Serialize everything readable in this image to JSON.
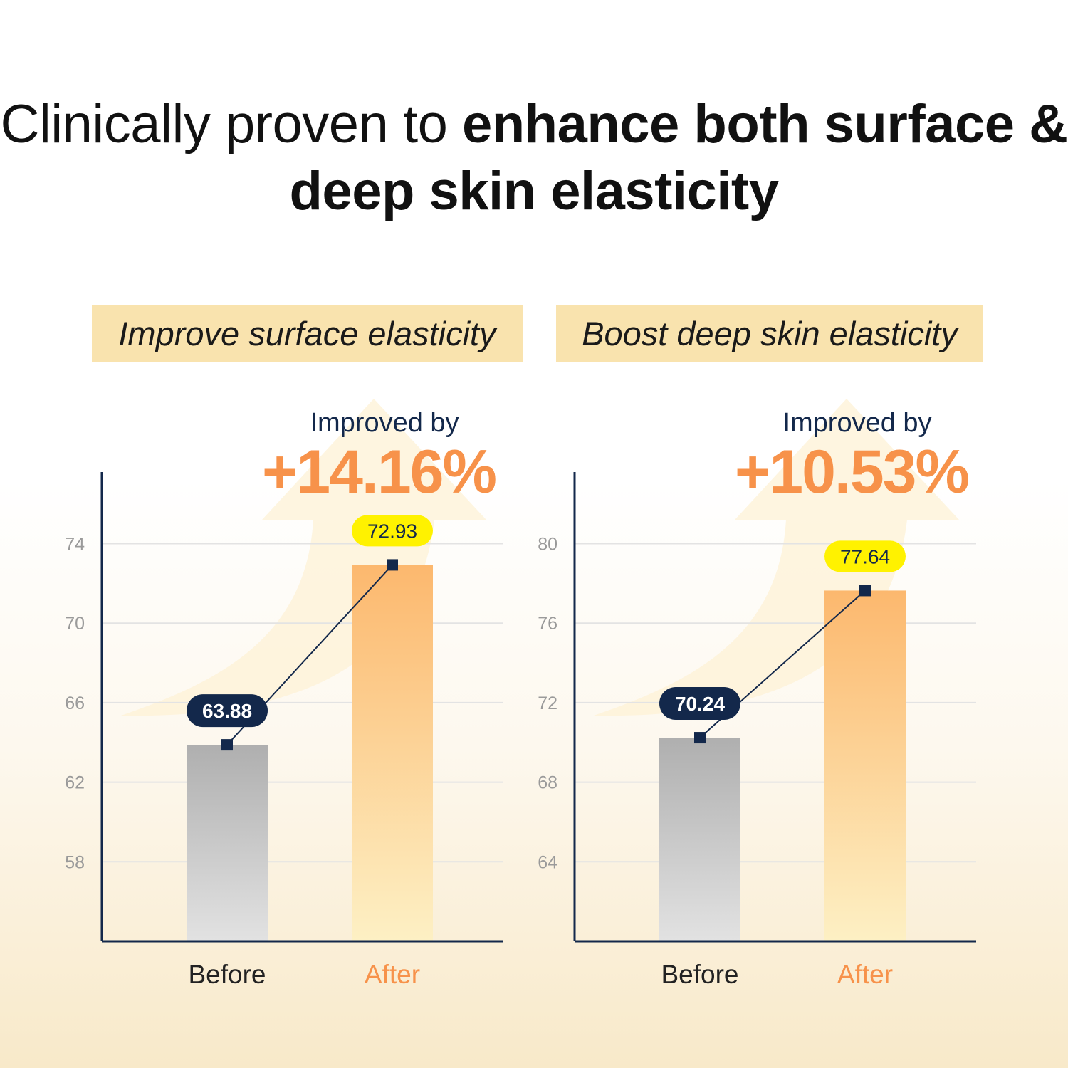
{
  "title": {
    "regular": "Clinically proven to ",
    "bold": "enhance both surface & deep skin elasticity"
  },
  "colors": {
    "navy": "#13284b",
    "orange": "#f7924a",
    "yellow_pill": "#fff200",
    "header_bg": "#f9e3ae",
    "before_bar": "#b0b0b0",
    "after_bar": "#fcbc74"
  },
  "chart_data": [
    {
      "type": "bar",
      "title": "Improve surface elasticity",
      "improved_label": "Improved by",
      "improvement": "+14.16%",
      "categories": [
        "Before",
        "After"
      ],
      "values": [
        63.88,
        72.93
      ],
      "value_labels": [
        "63.88",
        "72.93"
      ],
      "yticks": [
        58,
        62,
        66,
        70,
        74
      ],
      "ylim": [
        54,
        77.6
      ],
      "grid": true,
      "overlay": "line connecting bar tops"
    },
    {
      "type": "bar",
      "title": "Boost deep skin elasticity",
      "improved_label": "Improved by",
      "improvement": "+10.53%",
      "categories": [
        "Before",
        "After"
      ],
      "values": [
        70.24,
        77.64
      ],
      "value_labels": [
        "70.24",
        "77.64"
      ],
      "yticks": [
        64,
        68,
        72,
        76,
        80
      ],
      "ylim": [
        60,
        83.6
      ],
      "grid": true,
      "overlay": "line connecting bar tops"
    }
  ]
}
